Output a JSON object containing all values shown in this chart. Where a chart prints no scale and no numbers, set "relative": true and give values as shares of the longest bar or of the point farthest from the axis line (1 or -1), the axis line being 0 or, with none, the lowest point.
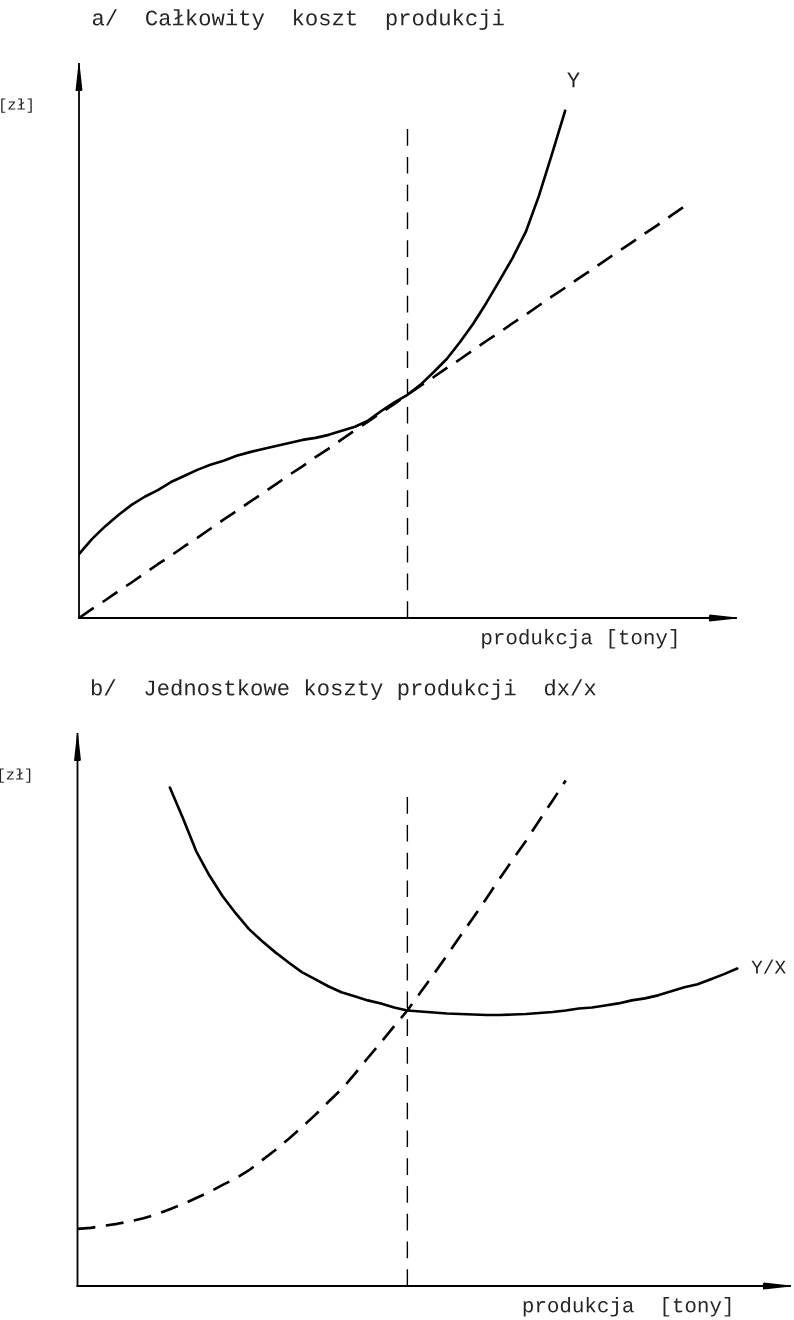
{
  "chart_data": [
    {
      "type": "line",
      "relative": true,
      "title": "a/  Całkowity  koszt  produkcji",
      "ylabel": "[zł]",
      "xlabel": "produkcja [tony]",
      "categories": [
        null,
        null,
        null,
        null,
        null,
        null,
        null,
        null,
        null,
        null,
        null,
        null,
        null,
        null,
        null,
        null,
        null,
        null,
        null,
        null,
        null,
        null,
        null,
        null,
        null,
        null,
        null,
        null,
        null,
        null,
        null,
        null,
        null,
        null,
        null,
        null,
        null,
        null,
        null,
        null,
        null,
        null,
        null,
        null,
        null,
        null,
        null,
        null,
        null,
        null,
        null
      ],
      "series": [
        {
          "name": "Y",
          "color": "#000000",
          "line_style": "solid",
          "values": [
            0.126,
            0.156,
            0.181,
            0.203,
            0.223,
            0.239,
            0.252,
            0.268,
            0.28,
            0.292,
            0.302,
            0.31,
            0.32,
            0.327,
            0.333,
            0.339,
            0.345,
            0.351,
            0.355,
            0.361,
            0.369,
            0.377,
            0.389,
            0.408,
            0.425,
            0.44,
            0.46,
            0.485,
            0.511,
            0.544,
            0.58,
            0.621,
            0.665,
            0.71,
            0.761,
            0.832,
            0.915,
            1.0,
            null,
            null,
            null,
            null,
            null,
            null,
            null,
            null,
            null,
            null,
            null,
            null,
            null
          ]
        },
        {
          "color": "#000000",
          "line_style": "dashed",
          "values": [
            0,
            0.018,
            0.035,
            0.053,
            0.07,
            0.088,
            0.106,
            0.123,
            0.141,
            0.158,
            0.176,
            0.194,
            0.211,
            0.229,
            0.246,
            0.264,
            0.282,
            0.299,
            0.317,
            0.334,
            0.352,
            0.37,
            0.387,
            0.405,
            0.422,
            0.44,
            0.458,
            0.475,
            0.493,
            0.51,
            0.528,
            0.546,
            0.563,
            0.581,
            0.598,
            0.616,
            0.634,
            0.651,
            0.669,
            0.686,
            0.704,
            0.722,
            0.739,
            0.757,
            0.774,
            0.792,
            0.81,
            null,
            null,
            null,
            null
          ]
        }
      ]
    },
    {
      "type": "line",
      "relative": true,
      "title": "b/  Jednostkowe koszty produkcji  dx/x",
      "ylabel": "[zł]",
      "xlabel": "produkcja  [tony]",
      "categories": [
        null,
        null,
        null,
        null,
        null,
        null,
        null,
        null,
        null,
        null,
        null,
        null,
        null,
        null,
        null,
        null,
        null,
        null,
        null,
        null,
        null,
        null,
        null,
        null,
        null,
        null,
        null,
        null,
        null,
        null,
        null,
        null,
        null,
        null,
        null,
        null,
        null,
        null,
        null,
        null,
        null,
        null,
        null,
        null,
        null,
        null,
        null,
        null,
        null,
        null,
        null,
        null,
        null,
        null,
        null
      ],
      "series": [
        {
          "name": "Y/X",
          "color": "#000000",
          "line_style": "solid",
          "values": [
            null,
            null,
            null,
            null,
            null,
            null,
            null,
            0.986,
            0.925,
            0.86,
            0.812,
            0.771,
            0.737,
            0.706,
            0.682,
            0.66,
            0.64,
            0.621,
            0.607,
            0.593,
            0.581,
            0.573,
            0.565,
            0.559,
            0.551,
            0.545,
            0.543,
            0.541,
            0.539,
            0.538,
            0.537,
            0.536,
            0.536,
            0.537,
            0.538,
            0.54,
            0.542,
            0.545,
            0.549,
            0.551,
            0.555,
            0.559,
            0.565,
            0.569,
            0.575,
            0.583,
            0.591,
            0.597,
            0.607,
            0.617,
            0.628,
            null,
            null,
            null,
            null
          ]
        },
        {
          "color": "#000000",
          "line_style": "dashed",
          "values": [
            0.113,
            0.115,
            0.119,
            0.123,
            0.128,
            0.134,
            0.142,
            0.152,
            0.162,
            0.174,
            0.186,
            0.2,
            0.213,
            0.229,
            0.249,
            0.269,
            0.291,
            0.314,
            0.338,
            0.364,
            0.389,
            0.419,
            0.451,
            0.482,
            0.514,
            0.545,
            0.581,
            0.617,
            0.654,
            0.692,
            0.729,
            0.767,
            0.806,
            0.844,
            0.881,
            0.921,
            0.96,
            1.0,
            null,
            null,
            null,
            null,
            null,
            null,
            null,
            null,
            null,
            null,
            null,
            null,
            null,
            null,
            null,
            null,
            null
          ]
        }
      ]
    }
  ]
}
